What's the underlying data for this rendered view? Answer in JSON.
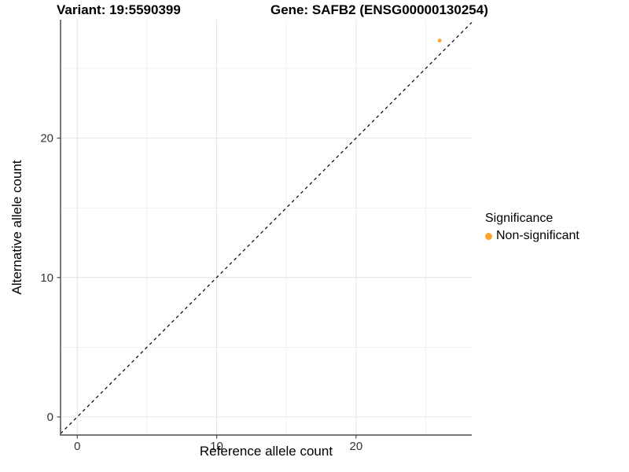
{
  "titles": {
    "variant": "Variant: 19:5590399",
    "gene": "Gene: SAFB2 (ENSG00000130254)"
  },
  "chart_data": {
    "type": "scatter",
    "xlabel": "Reference allele count",
    "ylabel": "Alternative allele count",
    "xlim": [
      -1.2,
      28.3
    ],
    "ylim": [
      -1.3,
      28.5
    ],
    "x_major_ticks": [
      0,
      10,
      20
    ],
    "y_major_ticks": [
      0,
      10,
      20
    ],
    "x_minor_ticks": [
      5,
      15,
      25
    ],
    "y_minor_ticks": [
      5,
      15,
      25
    ],
    "grid": true,
    "reference_line": {
      "type": "identity",
      "slope": 1,
      "intercept": 0,
      "style": "dashed",
      "color": "#000000"
    },
    "series": [
      {
        "name": "Non-significant",
        "color": "#FCA32B",
        "points": [
          {
            "x": 26,
            "y": 27
          }
        ]
      }
    ],
    "legend": {
      "title": "Significance",
      "position": "right",
      "items": [
        {
          "label": "Non-significant",
          "color": "#FCA32B"
        }
      ]
    }
  },
  "colors": {
    "background": "#FFFFFF",
    "axis_line": "#4D4D4D",
    "tick_label": "#333333",
    "grid_major": "#E4E4E4",
    "grid_minor": "#F1F1F1"
  }
}
